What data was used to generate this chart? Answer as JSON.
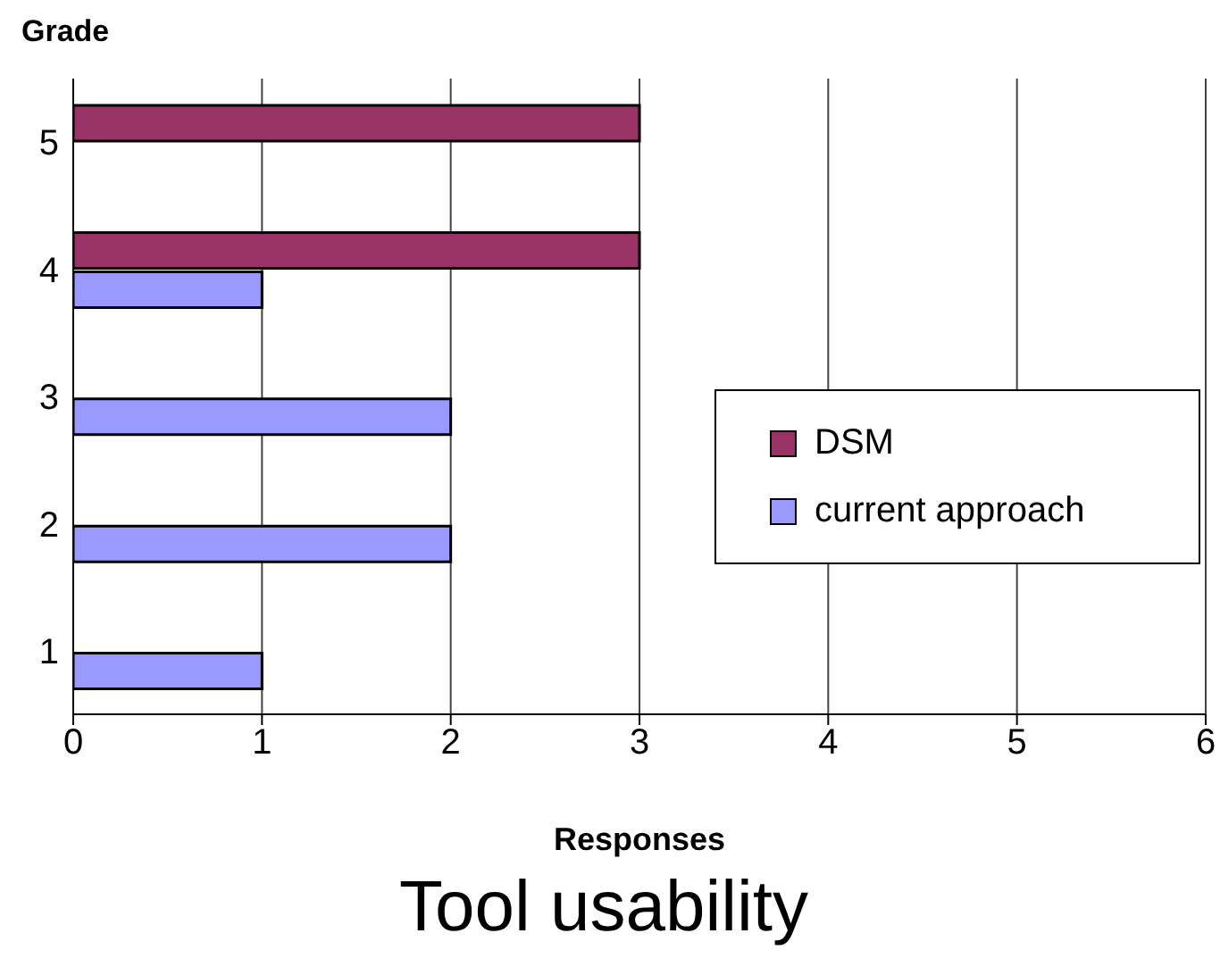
{
  "chart_data": {
    "type": "bar",
    "orientation": "horizontal",
    "title": "Tool usability",
    "xlabel": "Responses",
    "ylabel": "Grade",
    "categories": [
      "5",
      "4",
      "3",
      "2",
      "1"
    ],
    "series": [
      {
        "name": "DSM",
        "color": "#993366",
        "values": [
          3,
          3,
          null,
          null,
          null
        ]
      },
      {
        "name": "current approach",
        "color": "#9999ff",
        "values": [
          null,
          1,
          2,
          2,
          1
        ]
      }
    ],
    "xlim": [
      0,
      6
    ],
    "xticks": [
      0,
      1,
      2,
      3,
      4,
      5,
      6
    ],
    "grid": "x",
    "legend": "right"
  }
}
